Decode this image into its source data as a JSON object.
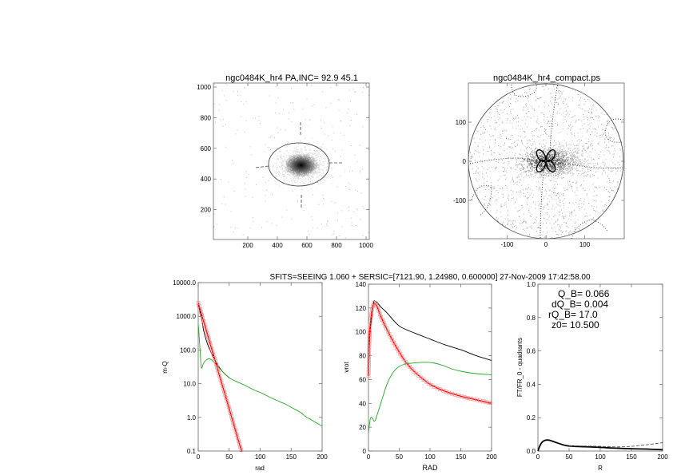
{
  "header": {
    "caption": "SFITS=SEEING 1.060 + SERSIC=[7121.90, 1.24980, 0.600000]  27-Nov-2009 17:42:58.00"
  },
  "colors": {
    "model_total": "#000000",
    "bulge": "#ff0000",
    "bulge_marker": "#ff8080",
    "disk": "#22aa22",
    "frame": "#555555"
  },
  "chart_data": [
    {
      "type": "heatmap",
      "title": "ngc0484K_hr4 PA,INC= 92.9 45.1",
      "xlim": [
        0,
        1024
      ],
      "ylim": [
        0,
        1000
      ],
      "xticks": [
        "200",
        "400",
        "600",
        "800",
        "1000"
      ],
      "yticks": [
        "200",
        "400",
        "600",
        "800",
        "1000"
      ],
      "galaxy_center": [
        560,
        490
      ],
      "ellipse_pa_inc": [
        92.9,
        45.1
      ],
      "colormap": "inverted grayscale"
    },
    {
      "type": "heatmap",
      "title": "ngc0484K_hr4_compact.ps",
      "xlim": [
        -200,
        200
      ],
      "ylim": [
        -200,
        200
      ],
      "xticks": [
        "-100",
        "0",
        "100"
      ],
      "yticks": [
        "-100",
        "0",
        "100"
      ],
      "contours": "dotted zero-level contours and solid four-lobed central contour"
    },
    {
      "type": "line",
      "xlabel": "rad",
      "ylabel": "m-Q",
      "xlim": [
        0,
        200
      ],
      "ylim": [
        0.1,
        10000
      ],
      "yscale": "log",
      "xticks": [
        "0",
        "50",
        "100",
        "150",
        "200"
      ],
      "yticks": [
        "0.1",
        "1.0",
        "10.0",
        "100.0",
        "1000.0",
        "10000.0"
      ],
      "series": [
        {
          "color": "#000000",
          "x": [
            0,
            2,
            5,
            8,
            10,
            15,
            20,
            25,
            30,
            40,
            50
          ],
          "y": [
            2500,
            1600,
            900,
            450,
            300,
            150,
            90,
            60,
            40,
            22,
            15
          ]
        },
        {
          "color": "#22aa22",
          "x": [
            0,
            1,
            3,
            5,
            8,
            10,
            14,
            18,
            22,
            30,
            40,
            50,
            60,
            75,
            90,
            100,
            115,
            125,
            140,
            150,
            165,
            175,
            180,
            190,
            200
          ],
          "y": [
            600,
            350,
            100,
            30,
            38,
            45,
            52,
            55,
            50,
            35,
            22,
            15,
            12,
            9,
            6.5,
            5.5,
            4,
            3.3,
            2.5,
            2.0,
            1.4,
            1.0,
            0.9,
            0.7,
            0.55
          ]
        },
        {
          "color": "#ff0000",
          "marker": "square",
          "x": [
            0,
            5,
            10,
            15,
            20,
            25,
            30,
            35,
            40,
            45,
            50,
            55,
            60,
            65,
            70
          ],
          "y": [
            2500,
            1210,
            587,
            285,
            138,
            67,
            32.4,
            15.7,
            7.6,
            3.7,
            1.8,
            0.87,
            0.42,
            0.2,
            0.1
          ]
        }
      ]
    },
    {
      "type": "line",
      "xlabel": "RAD",
      "ylabel": "vrot",
      "xlim": [
        0,
        200
      ],
      "ylim": [
        0,
        140
      ],
      "xticks": [
        "0",
        "50",
        "100",
        "150",
        "200"
      ],
      "yticks": [
        "0",
        "20",
        "40",
        "60",
        "80",
        "100",
        "120",
        "140"
      ],
      "series": [
        {
          "color": "#000000",
          "x": [
            0,
            2,
            5,
            8,
            10,
            15,
            20,
            30,
            50,
            75,
            100,
            125,
            150,
            175,
            200
          ],
          "y": [
            63,
            95,
            112,
            124,
            126,
            124,
            121,
            116,
            105,
            99,
            94,
            89,
            85,
            80,
            76
          ]
        },
        {
          "color": "#ff0000",
          "marker": "square",
          "x": [
            0,
            2,
            5,
            8,
            10,
            15,
            20,
            30,
            40,
            50,
            60,
            70,
            80,
            100,
            125,
            150,
            175,
            200
          ],
          "y": [
            63,
            100,
            116,
            123,
            124,
            120,
            113,
            102,
            92,
            83,
            75,
            69,
            64,
            56,
            50,
            46,
            43,
            40
          ]
        },
        {
          "color": "#22aa22",
          "x": [
            0,
            3,
            6,
            10,
            15,
            20,
            30,
            40,
            50,
            60,
            75,
            90,
            105,
            120,
            135,
            150,
            175,
            200
          ],
          "y": [
            15,
            27,
            28,
            25,
            32,
            40,
            56,
            66,
            71,
            73,
            74,
            74.5,
            74,
            72,
            69,
            67,
            65,
            64
          ]
        }
      ]
    },
    {
      "type": "line",
      "xlabel": "R",
      "ylabel": "FT/FR_0 - quadrants",
      "xlim": [
        0,
        200
      ],
      "ylim": [
        0,
        1.0
      ],
      "xticks": [
        "0",
        "50",
        "100",
        "150",
        "200"
      ],
      "yticks": [
        "0.0",
        "0.2",
        "0.4",
        "0.6",
        "0.8",
        "1.0"
      ],
      "annotations": [
        "Q_B=  0.066",
        "dQ_B=  0.004",
        "rQ_B=   17.0",
        "z0= 10.500"
      ],
      "series": [
        {
          "color": "#000000",
          "style": "solid",
          "x": [
            0,
            3,
            6,
            10,
            15,
            20,
            30,
            40,
            50,
            75,
            100,
            125,
            150,
            175,
            200
          ],
          "y": [
            0,
            0.03,
            0.05,
            0.062,
            0.066,
            0.063,
            0.05,
            0.038,
            0.03,
            0.026,
            0.022,
            0.017,
            0.014,
            0.012,
            0.008
          ]
        },
        {
          "color": "#555555",
          "style": "dashed",
          "x": [
            50,
            75,
            100,
            125,
            150,
            175,
            200
          ],
          "y": [
            0.03,
            0.03,
            0.028,
            0.025,
            0.028,
            0.038,
            0.05
          ]
        }
      ]
    }
  ]
}
